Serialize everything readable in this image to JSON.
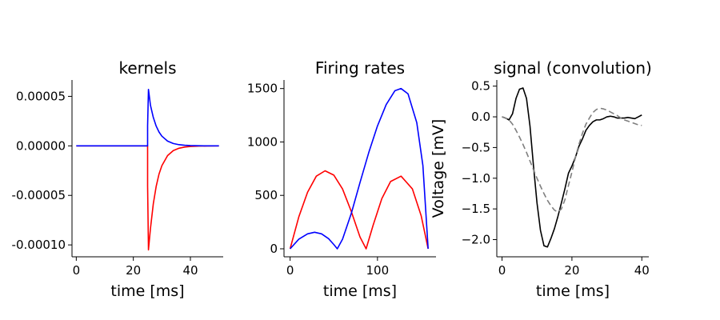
{
  "chart_data": [
    {
      "type": "line",
      "title": "kernels",
      "xlabel": "time [ms]",
      "ylabel": "",
      "xlim": [
        -1.5,
        51.5
      ],
      "ylim": [
        -0.000112,
        6.65e-05
      ],
      "xticks": [
        0,
        20,
        40
      ],
      "xtick_labels": [
        "0",
        "20",
        "40"
      ],
      "yticks": [
        5e-05,
        0.0,
        -5e-05,
        -0.0001
      ],
      "ytick_labels": [
        "0.00005",
        "0.00000",
        "-0.00005",
        "-0.00010"
      ],
      "series": [
        {
          "color": "#ff0000",
          "dash": "",
          "x": [
            0,
            25,
            25,
            25.3,
            26,
            27,
            28,
            29,
            30,
            32,
            34,
            36,
            38,
            40,
            43,
            46,
            50
          ],
          "y": [
            0,
            0,
            -4e-05,
            -0.000105,
            -8.35e-05,
            -5.85e-05,
            -4.1e-05,
            -2.85e-05,
            -2e-05,
            -9.8e-06,
            -4.8e-06,
            -2.4e-06,
            -1.2e-06,
            -6e-07,
            -2e-07,
            -1e-07,
            0
          ]
        },
        {
          "color": "#0000ff",
          "dash": "",
          "x": [
            0,
            25,
            25,
            25.3,
            26,
            27,
            28,
            29,
            30,
            32,
            34,
            36,
            38,
            40,
            43,
            46,
            50
          ],
          "y": [
            0,
            0,
            2e-05,
            5.7e-05,
            4.1e-05,
            2.87e-05,
            2e-05,
            1.4e-05,
            9.8e-06,
            4.8e-06,
            2.4e-06,
            1.2e-06,
            6e-07,
            3e-07,
            1e-07,
            0,
            0
          ]
        }
      ]
    },
    {
      "type": "line",
      "title": "Firing rates",
      "xlabel": "time [ms]",
      "ylabel": "",
      "xlim": [
        -7,
        167
      ],
      "ylim": [
        -75,
        1580
      ],
      "xticks": [
        0,
        100
      ],
      "xtick_labels": [
        "0",
        "100"
      ],
      "yticks": [
        0,
        500,
        1000,
        1500
      ],
      "ytick_labels": [
        "0",
        "500",
        "1000",
        "1500"
      ],
      "series": [
        {
          "color": "#ff0000",
          "dash": "",
          "x": [
            0,
            10,
            20,
            30,
            40,
            50,
            60,
            70,
            80,
            87,
            95,
            105,
            115,
            127,
            140,
            150,
            158
          ],
          "y": [
            0,
            300,
            530,
            680,
            730,
            690,
            560,
            350,
            110,
            0,
            220,
            470,
            630,
            680,
            560,
            310,
            0
          ]
        },
        {
          "color": "#0000ff",
          "dash": "",
          "x": [
            0,
            10,
            20,
            28,
            36,
            44,
            50,
            54,
            60,
            70,
            80,
            90,
            100,
            110,
            120,
            127,
            135,
            145,
            152,
            158
          ],
          "y": [
            0,
            90,
            140,
            155,
            140,
            95,
            40,
            0,
            90,
            330,
            620,
            900,
            1150,
            1350,
            1480,
            1500,
            1450,
            1180,
            780,
            0
          ]
        }
      ]
    },
    {
      "type": "line",
      "title": "signal (convolution)",
      "xlabel": "time [ms]",
      "ylabel": "Voltage [mV]",
      "xlim": [
        -1.5,
        42
      ],
      "ylim": [
        -2.28,
        0.6
      ],
      "xticks": [
        0,
        20,
        40
      ],
      "xtick_labels": [
        "0",
        "20",
        "40"
      ],
      "yticks": [
        0.5,
        0.0,
        -0.5,
        -1.0,
        -1.5,
        -2.0
      ],
      "ytick_labels": [
        "0.5",
        "0.0",
        "−0.5",
        "−1.0",
        "−1.5",
        "−2.0"
      ],
      "series": [
        {
          "color": "#000000",
          "dash": "",
          "x": [
            0,
            1,
            2,
            3,
            4,
            5,
            6,
            7,
            8,
            9,
            10,
            11,
            12,
            13,
            14,
            15,
            16,
            17,
            18,
            19,
            20,
            21,
            22,
            23,
            24,
            25,
            26,
            27,
            28,
            29,
            30,
            31,
            32,
            33,
            34,
            35,
            36,
            37,
            38,
            39,
            40
          ],
          "y": [
            0.0,
            -0.02,
            -0.05,
            0.05,
            0.3,
            0.45,
            0.47,
            0.3,
            -0.15,
            -0.8,
            -1.4,
            -1.85,
            -2.1,
            -2.12,
            -1.98,
            -1.82,
            -1.62,
            -1.4,
            -1.17,
            -0.92,
            -0.8,
            -0.66,
            -0.48,
            -0.36,
            -0.22,
            -0.14,
            -0.08,
            -0.05,
            -0.05,
            -0.03,
            0.0,
            0.01,
            0.0,
            -0.02,
            -0.02,
            -0.02,
            -0.01,
            -0.02,
            -0.03,
            0.0,
            0.03
          ]
        },
        {
          "color": "#7f7f7f",
          "dash": "7,4",
          "x": [
            0,
            1,
            2,
            3,
            4,
            5,
            6,
            7,
            8,
            9,
            10,
            11,
            12,
            13,
            14,
            15,
            16,
            17,
            18,
            19,
            20,
            21,
            22,
            23,
            24,
            25,
            26,
            27,
            28,
            29,
            30,
            31,
            32,
            33,
            34,
            35,
            36,
            37,
            38,
            39,
            40
          ],
          "y": [
            0.0,
            -0.02,
            -0.05,
            -0.12,
            -0.22,
            -0.33,
            -0.45,
            -0.58,
            -0.72,
            -0.86,
            -1.0,
            -1.13,
            -1.25,
            -1.36,
            -1.45,
            -1.52,
            -1.55,
            -1.5,
            -1.35,
            -1.12,
            -0.9,
            -0.66,
            -0.45,
            -0.27,
            -0.12,
            -0.02,
            0.07,
            0.12,
            0.14,
            0.13,
            0.11,
            0.08,
            0.05,
            0.02,
            -0.02,
            -0.05,
            -0.07,
            -0.09,
            -0.11,
            -0.13,
            -0.14
          ]
        }
      ]
    }
  ]
}
